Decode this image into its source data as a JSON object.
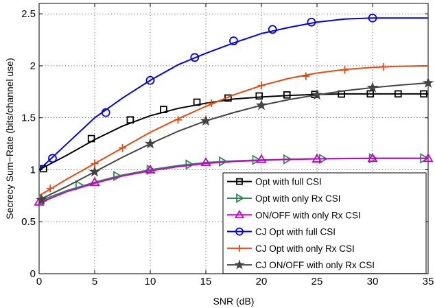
{
  "chart_data": {
    "type": "line",
    "xlabel": "SNR (dB)",
    "ylabel": "Secrecy Sum−Rate (bits/channel use)",
    "xlim": [
      0,
      35
    ],
    "ylim": [
      0,
      2.6
    ],
    "xticks": [
      0,
      5,
      10,
      15,
      20,
      25,
      30,
      35
    ],
    "xtick_labels": [
      "0",
      "5",
      "10",
      "15",
      "20",
      "25",
      "30",
      "35"
    ],
    "yticks": [
      0,
      0.5,
      1,
      1.5,
      2,
      2.5
    ],
    "ytick_labels": [
      "0",
      "0.5",
      "1",
      "1.5",
      "2",
      "2.5"
    ],
    "grid": true,
    "legend_position": "bottom-right",
    "series": [
      {
        "name": "Opt with full CSI",
        "color": "#000000",
        "marker": "square",
        "x": [
          0,
          2.5,
          5,
          7.5,
          10,
          12.5,
          15,
          17.5,
          20,
          22.5,
          25,
          27.5,
          30,
          32.5,
          35
        ],
        "y": [
          1.0,
          1.14,
          1.29,
          1.42,
          1.52,
          1.59,
          1.64,
          1.68,
          1.7,
          1.715,
          1.725,
          1.73,
          1.73,
          1.73,
          1.73
        ],
        "marker_x": [
          0.4,
          4.7,
          8.2,
          11.2,
          14.2,
          17.0,
          19.8,
          22.3,
          24.8,
          27.2,
          29.8,
          32.3,
          34.6
        ],
        "marker_y": [
          1.01,
          1.3,
          1.48,
          1.58,
          1.65,
          1.69,
          1.71,
          1.72,
          1.725,
          1.728,
          1.73,
          1.73,
          1.73
        ]
      },
      {
        "name": "Opt with only Rx CSI",
        "color": "#2e8b57",
        "marker": "triangle-right",
        "x": [
          0,
          2.5,
          5,
          7.5,
          10,
          12.5,
          15,
          17.5,
          20,
          22.5,
          25,
          27.5,
          30,
          32.5,
          35
        ],
        "y": [
          0.7,
          0.8,
          0.88,
          0.95,
          1.0,
          1.04,
          1.07,
          1.085,
          1.095,
          1.1,
          1.105,
          1.108,
          1.11,
          1.11,
          1.11
        ],
        "marker_x": [
          0.4,
          3.6,
          7.0,
          10.0,
          13.5,
          16.5,
          19.5,
          22.3,
          25.5,
          30.0,
          34.6
        ],
        "marker_y": [
          0.71,
          0.85,
          0.94,
          1.0,
          1.05,
          1.08,
          1.095,
          1.1,
          1.105,
          1.11,
          1.11
        ]
      },
      {
        "name": "ON/OFF with only Rx CSI",
        "color": "#cc00cc",
        "marker": "triangle-up",
        "x": [
          0,
          2.5,
          5,
          7.5,
          10,
          12.5,
          15,
          17.5,
          20,
          22.5,
          25,
          27.5,
          30,
          32.5,
          35
        ],
        "y": [
          0.68,
          0.79,
          0.87,
          0.94,
          0.99,
          1.03,
          1.06,
          1.08,
          1.09,
          1.1,
          1.105,
          1.108,
          1.11,
          1.11,
          1.11
        ],
        "marker_x": [
          0,
          5,
          10,
          15,
          20,
          25,
          30,
          35
        ],
        "marker_y": [
          0.69,
          0.88,
          1.0,
          1.07,
          1.1,
          1.105,
          1.11,
          1.11
        ]
      },
      {
        "name": "CJ Opt with full CSI",
        "color": "#0000ee",
        "marker": "circle",
        "x": [
          0,
          2.5,
          5,
          7.5,
          10,
          12.5,
          15,
          17.5,
          20,
          22.5,
          25,
          27.5,
          30,
          32.5,
          35
        ],
        "y": [
          1.0,
          1.25,
          1.5,
          1.69,
          1.86,
          2.01,
          2.12,
          2.22,
          2.31,
          2.37,
          2.42,
          2.45,
          2.46,
          2.46,
          2.46
        ],
        "marker_x": [
          1.2,
          6.0,
          10.0,
          14.0,
          17.5,
          21.0,
          24.5,
          30.0
        ],
        "marker_y": [
          1.11,
          1.55,
          1.86,
          2.08,
          2.24,
          2.35,
          2.42,
          2.46
        ]
      },
      {
        "name": "CJ Opt with only Rx CSI",
        "color": "#e8490f",
        "marker": "plus",
        "x": [
          0,
          2.5,
          5,
          7.5,
          10,
          12.5,
          15,
          17.5,
          20,
          22.5,
          25,
          27.5,
          30,
          32.5,
          35
        ],
        "y": [
          0.75,
          0.91,
          1.06,
          1.21,
          1.36,
          1.49,
          1.61,
          1.72,
          1.81,
          1.88,
          1.93,
          1.965,
          1.985,
          1.995,
          2.0
        ],
        "marker_x": [
          1.0,
          5.0,
          7.5,
          12.5,
          15.5,
          20.0,
          24.0,
          27.5,
          31.0
        ],
        "marker_y": [
          0.82,
          1.06,
          1.21,
          1.48,
          1.64,
          1.81,
          1.9,
          1.96,
          1.99
        ]
      },
      {
        "name": "CJ ON/OFF with only Rx CSI",
        "color": "#444444",
        "marker": "star",
        "x": [
          0,
          2.5,
          5,
          7.5,
          10,
          12.5,
          15,
          17.5,
          20,
          22.5,
          25,
          27.5,
          30,
          32.5,
          35
        ],
        "y": [
          0.71,
          0.84,
          0.98,
          1.12,
          1.25,
          1.37,
          1.47,
          1.55,
          1.62,
          1.675,
          1.72,
          1.76,
          1.79,
          1.815,
          1.835
        ],
        "marker_x": [
          0.2,
          5.0,
          10.0,
          15.0,
          20.0,
          25.0,
          30.0,
          35.0
        ],
        "marker_y": [
          0.71,
          0.98,
          1.25,
          1.47,
          1.62,
          1.72,
          1.79,
          1.835
        ]
      }
    ]
  }
}
